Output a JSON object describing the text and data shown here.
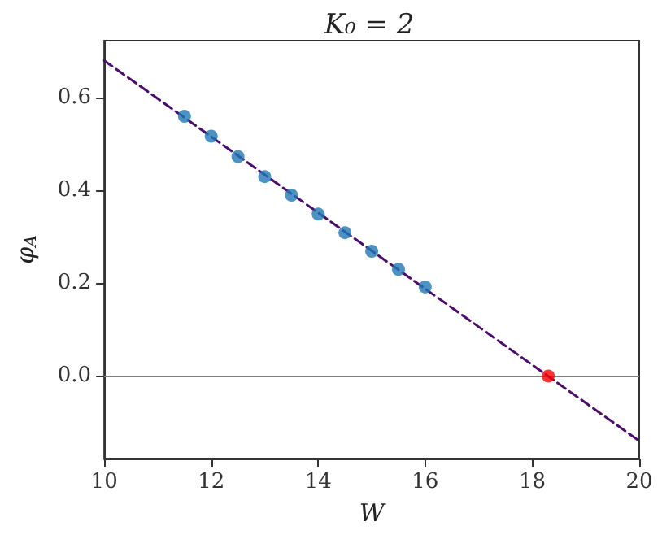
{
  "chart_data": {
    "type": "scatter",
    "title": "K₀ = 2",
    "xlabel": "W",
    "ylabel": "φ$_{A}$",
    "xlim": [
      10,
      20
    ],
    "ylim": [
      -0.178,
      0.723
    ],
    "xticks": [
      10,
      12,
      14,
      16,
      18,
      20
    ],
    "yticks": [
      {
        "value": 0,
        "label": "0.0"
      },
      {
        "value": 0.2,
        "label": "0.2"
      },
      {
        "value": 0.4,
        "label": "0.4"
      },
      {
        "value": 0.6,
        "label": "0.6"
      }
    ],
    "grid": false,
    "ref_lines": [
      {
        "axis": "y",
        "value": 0,
        "color": "#808080",
        "line_style": "solid"
      }
    ],
    "series": [
      {
        "type": "line",
        "color": "#4b0c6e",
        "line_style": "dashed",
        "marker": "none",
        "x": [
          10,
          20
        ],
        "values": [
          0.68,
          -0.14
        ]
      },
      {
        "color": "#1f77b4",
        "marker": "circle",
        "x": [
          11.5,
          12,
          12.5,
          13,
          13.5,
          14,
          14.5,
          15,
          15.5,
          16
        ],
        "values": [
          0.56,
          0.517,
          0.473,
          0.43,
          0.39,
          0.349,
          0.309,
          0.269,
          0.23,
          0.192
        ]
      },
      {
        "color": "#ff0000",
        "marker": "circle",
        "x": [
          18.3
        ],
        "values": [
          0
        ]
      }
    ]
  }
}
